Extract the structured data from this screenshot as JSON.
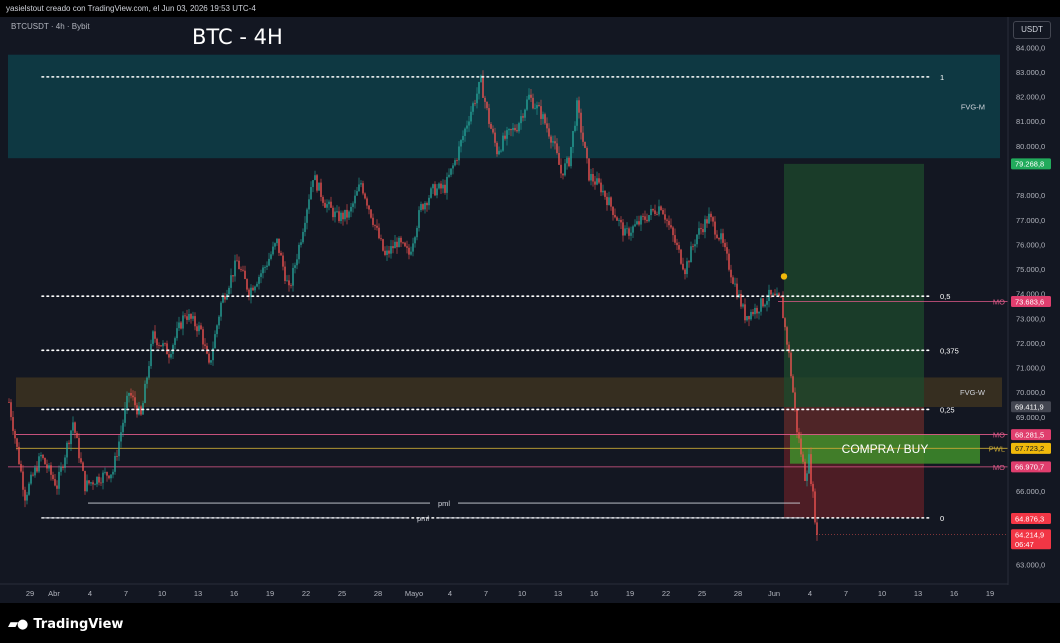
{
  "header": {
    "attribution": "yasielstout creado con TradingView.com, el Jun 03, 2026 19:53 UTC-4",
    "symbol_line": "BTCUSDT · 4h · Bybit",
    "title": "BTC - 4H",
    "currency": "USDT"
  },
  "footer": {
    "brand": "TradingView"
  },
  "colors": {
    "up": "#26a69a",
    "down": "#ef5350",
    "fvg_m": "#0e3a45",
    "fvg_w": "#3b3120",
    "target_zone": "#1e4a2c",
    "stop_zone": "#5c1f27",
    "buy_box": "#3f8e2a",
    "mo_line": "#e05a8a",
    "pwl_line": "#c8a835",
    "pml_line": "#d1d4dc",
    "fib_dots": "#ffffff",
    "price_label_green": "#22ab5c",
    "price_label_red": "#f23645",
    "price_label_pink": "#e03e6e",
    "price_label_yellow": "#f0b90b",
    "price_label_grey": "#434651"
  },
  "chart_data": {
    "type": "candlestick",
    "timeframe": "4h",
    "symbol": "BTCUSDT",
    "exchange": "Bybit",
    "ylim": [
      62500,
      84500
    ],
    "y_ticks": [
      "84.000,0",
      "83.000,0",
      "82.000,0",
      "81.000,0",
      "80.000,0",
      "78.000,0",
      "77.000,0",
      "76.000,0",
      "75.000,0",
      "74.000,0",
      "73.000,0",
      "72.000,0",
      "71.000,0",
      "70.000,0",
      "69.000,0",
      "66.000,0",
      "63.000,0"
    ],
    "x_ticks": [
      {
        "label": "29",
        "bar": 11
      },
      {
        "label": "Abr",
        "bar": 23
      },
      {
        "label": "4",
        "bar": 41
      },
      {
        "label": "7",
        "bar": 59
      },
      {
        "label": "10",
        "bar": 77
      },
      {
        "label": "13",
        "bar": 95
      },
      {
        "label": "16",
        "bar": 113
      },
      {
        "label": "19",
        "bar": 131
      },
      {
        "label": "22",
        "bar": 149
      },
      {
        "label": "25",
        "bar": 167
      },
      {
        "label": "28",
        "bar": 185
      },
      {
        "label": "Mayo",
        "bar": 203
      },
      {
        "label": "4",
        "bar": 221
      },
      {
        "label": "7",
        "bar": 239
      },
      {
        "label": "10",
        "bar": 257
      },
      {
        "label": "13",
        "bar": 275
      },
      {
        "label": "16",
        "bar": 293
      },
      {
        "label": "19",
        "bar": 311
      },
      {
        "label": "22",
        "bar": 329
      },
      {
        "label": "25",
        "bar": 347
      },
      {
        "label": "28",
        "bar": 365
      },
      {
        "label": "Jun",
        "bar": 383
      },
      {
        "label": "4",
        "bar": 401
      },
      {
        "label": "7",
        "bar": 419
      },
      {
        "label": "10",
        "bar": 437
      },
      {
        "label": "13",
        "bar": 455
      },
      {
        "label": "16",
        "bar": 473
      },
      {
        "label": "19",
        "bar": 491
      }
    ],
    "close_path": [
      {
        "bar": 0,
        "price": 69600
      },
      {
        "bar": 8,
        "price": 65800
      },
      {
        "bar": 16,
        "price": 67400
      },
      {
        "bar": 24,
        "price": 66200
      },
      {
        "bar": 32,
        "price": 68800
      },
      {
        "bar": 38,
        "price": 66200
      },
      {
        "bar": 44,
        "price": 66500
      },
      {
        "bar": 52,
        "price": 66800
      },
      {
        "bar": 60,
        "price": 70000
      },
      {
        "bar": 66,
        "price": 69000
      },
      {
        "bar": 72,
        "price": 72300
      },
      {
        "bar": 80,
        "price": 71600
      },
      {
        "bar": 88,
        "price": 73200
      },
      {
        "bar": 96,
        "price": 72500
      },
      {
        "bar": 100,
        "price": 71000
      },
      {
        "bar": 106,
        "price": 73600
      },
      {
        "bar": 114,
        "price": 75300
      },
      {
        "bar": 120,
        "price": 74100
      },
      {
        "bar": 128,
        "price": 75100
      },
      {
        "bar": 134,
        "price": 76100
      },
      {
        "bar": 140,
        "price": 74100
      },
      {
        "bar": 146,
        "price": 76300
      },
      {
        "bar": 152,
        "price": 78800
      },
      {
        "bar": 158,
        "price": 77700
      },
      {
        "bar": 164,
        "price": 77100
      },
      {
        "bar": 170,
        "price": 77200
      },
      {
        "bar": 176,
        "price": 78500
      },
      {
        "bar": 182,
        "price": 77000
      },
      {
        "bar": 188,
        "price": 75500
      },
      {
        "bar": 194,
        "price": 76100
      },
      {
        "bar": 200,
        "price": 75600
      },
      {
        "bar": 206,
        "price": 77500
      },
      {
        "bar": 212,
        "price": 78200
      },
      {
        "bar": 218,
        "price": 78300
      },
      {
        "bar": 224,
        "price": 79600
      },
      {
        "bar": 230,
        "price": 81200
      },
      {
        "bar": 236,
        "price": 82600
      },
      {
        "bar": 240,
        "price": 81000
      },
      {
        "bar": 244,
        "price": 79800
      },
      {
        "bar": 248,
        "price": 80300
      },
      {
        "bar": 254,
        "price": 80800
      },
      {
        "bar": 260,
        "price": 82000
      },
      {
        "bar": 266,
        "price": 81300
      },
      {
        "bar": 272,
        "price": 80200
      },
      {
        "bar": 276,
        "price": 78900
      },
      {
        "bar": 280,
        "price": 79400
      },
      {
        "bar": 284,
        "price": 81600
      },
      {
        "bar": 290,
        "price": 78800
      },
      {
        "bar": 296,
        "price": 78300
      },
      {
        "bar": 302,
        "price": 77400
      },
      {
        "bar": 308,
        "price": 76400
      },
      {
        "bar": 314,
        "price": 76800
      },
      {
        "bar": 320,
        "price": 77200
      },
      {
        "bar": 326,
        "price": 77600
      },
      {
        "bar": 332,
        "price": 76300
      },
      {
        "bar": 338,
        "price": 75000
      },
      {
        "bar": 344,
        "price": 76400
      },
      {
        "bar": 350,
        "price": 77100
      },
      {
        "bar": 356,
        "price": 76200
      },
      {
        "bar": 362,
        "price": 74600
      },
      {
        "bar": 368,
        "price": 73100
      },
      {
        "bar": 374,
        "price": 73400
      },
      {
        "bar": 380,
        "price": 73900
      },
      {
        "bar": 386,
        "price": 73700
      },
      {
        "bar": 390,
        "price": 71500
      },
      {
        "bar": 394,
        "price": 68500
      },
      {
        "bar": 398,
        "price": 66600
      },
      {
        "bar": 400,
        "price": 67300
      },
      {
        "bar": 404,
        "price": 64200
      }
    ],
    "zones": [
      {
        "name": "FVG-M",
        "label": "FVG-M",
        "from_bar": 0,
        "to_bar": 496,
        "low": 79500,
        "high": 83700
      },
      {
        "name": "FVG-W",
        "label": "FVG-W",
        "from_bar": 4,
        "to_bar": 497,
        "low": 69400,
        "high": 70600
      },
      {
        "name": "target",
        "from_bar": 388,
        "to_bar": 458,
        "low": 67700,
        "high": 79268.8
      },
      {
        "name": "stop",
        "from_bar": 388,
        "to_bar": 458,
        "low": 64900,
        "high": 69400
      },
      {
        "name": "buy",
        "label": "COMPRA / BUY",
        "from_bar": 391,
        "to_bar": 486,
        "low": 67100,
        "high": 68300
      }
    ],
    "fib_levels": [
      {
        "label": "1",
        "price": 82800
      },
      {
        "label": "0,5",
        "price": 73900
      },
      {
        "label": "0,375",
        "price": 71700
      },
      {
        "label": "0,25",
        "price": 69300
      },
      {
        "label": "0",
        "price": 64900
      }
    ],
    "fib_from_bar": 17,
    "fib_to_bar": 461,
    "lines": [
      {
        "label": "MO",
        "price": 73683.6,
        "from_bar": 385,
        "color": "mo"
      },
      {
        "label": "MO",
        "price": 68281.5,
        "from_bar": 4,
        "color": "mo"
      },
      {
        "label": "PWL",
        "price": 67723.2,
        "from_bar": 4,
        "color": "pwl"
      },
      {
        "label": "MO",
        "price": 66970.7,
        "from_bar": 0,
        "color": "mo"
      }
    ],
    "pml_lines": [
      {
        "label": "pml",
        "price": 65500,
        "from_bar": 40,
        "to_bar": 396
      },
      {
        "label": "pml",
        "price": 64900,
        "from_bar": 17,
        "to_bar": 398
      }
    ],
    "price_labels": [
      {
        "text": "79.268,8",
        "price": 79268.8,
        "color": "green"
      },
      {
        "text": "73.683,6",
        "price": 73683.6,
        "color": "pink"
      },
      {
        "text": "69.411,9",
        "price": 69411.9,
        "color": "grey"
      },
      {
        "text": "68.281,5",
        "price": 68281.5,
        "color": "pink"
      },
      {
        "text": "67.723,2",
        "price": 67723.2,
        "color": "yellow"
      },
      {
        "text": "66.970,7",
        "price": 66970.7,
        "color": "pink"
      },
      {
        "text": "64.876,3",
        "price": 64876.3,
        "color": "red"
      },
      {
        "text": "64.214,9",
        "sub": "06:47",
        "price": 64214.9,
        "color": "red"
      }
    ],
    "current_price": 64214.9,
    "countdown": "06:47"
  }
}
